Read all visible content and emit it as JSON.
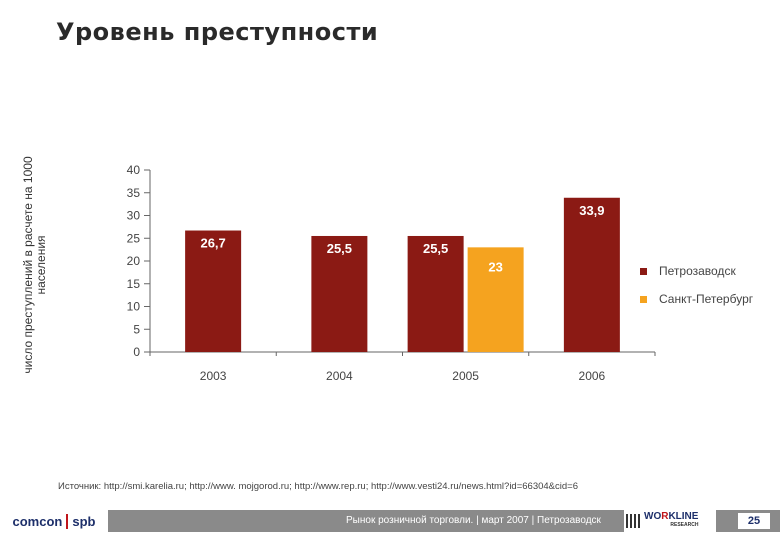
{
  "title": "Уровень преступности",
  "y_axis_title": "число преступлений в расчете на 1000 населения",
  "source": "Источник: http://smi.karelia.ru; http://www. mojgorod.ru; http://www.rep.ru; http://www.vesti24.ru/news.html?id=66304&cid=6",
  "footer": {
    "brand_left": "comcon",
    "brand_left_suffix": "spb",
    "text": "Рынок розничной торговли. | март 2007 | Петрозаводск",
    "brand_right_a": "WO",
    "brand_right_k": "R",
    "brand_right_b": "KLINE",
    "brand_right_sub": "RESEARCH",
    "page": "25"
  },
  "colors": {
    "petrozavodsk": "#8b1a14",
    "spb": "#f5a31f",
    "title": "#2a2a2a"
  },
  "chart_data": {
    "type": "bar",
    "categories": [
      "2003",
      "2004",
      "2005",
      "2006"
    ],
    "series": [
      {
        "name": "Петрозаводск",
        "values": [
          26.7,
          25.5,
          25.5,
          33.9
        ],
        "labels": [
          "26,7",
          "25,5",
          "25,5",
          "33,9"
        ]
      },
      {
        "name": "Санкт-Петербург",
        "values": [
          null,
          null,
          23,
          null
        ],
        "labels": [
          "",
          "",
          "23",
          ""
        ]
      }
    ],
    "ylim": [
      0,
      40
    ],
    "yticks": [
      "0",
      "5",
      "10",
      "15",
      "20",
      "25",
      "30",
      "35",
      "40"
    ],
    "ylabel": "число преступлений в расчете на 1000 населения",
    "legend": [
      "Петрозаводск",
      "Санкт-Петербург"
    ],
    "legend_position": "right"
  }
}
